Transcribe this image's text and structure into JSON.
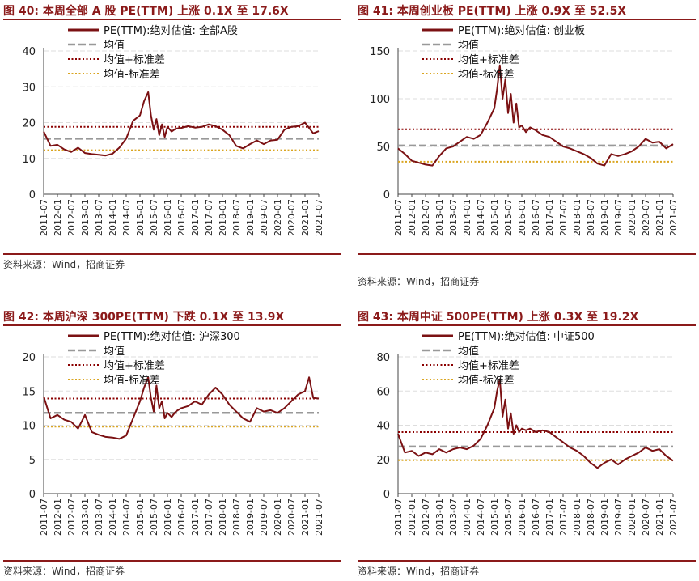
{
  "source_note": "资料来源：Wind，招商证券",
  "x_ticks": [
    "2011-07",
    "2012-01",
    "2012-07",
    "2013-01",
    "2013-07",
    "2014-01",
    "2014-07",
    "2015-01",
    "2015-07",
    "2016-01",
    "2016-07",
    "2017-01",
    "2017-07",
    "2018-01",
    "2018-07",
    "2019-01",
    "2019-07",
    "2020-01",
    "2020-07",
    "2021-01",
    "2021-07"
  ],
  "legend": {
    "mean": "均值",
    "plus": "均值+标准差",
    "minus": "均值-标准差"
  },
  "colors": {
    "series": "#7B1113",
    "mean": "#999999",
    "plus": "#8B0000",
    "minus": "#DAA520",
    "grid": "#DDDDDD",
    "title": "#8B1A1A"
  },
  "chart_data": [
    {
      "type": "line",
      "title": "图 40:  本周全部 A 股 PE(TTM) 上涨 0.1X 至 17.6X",
      "series_name": "PE(TTM):绝对估值: 全部A股",
      "ylim": [
        0,
        40
      ],
      "yticks": [
        0,
        10,
        20,
        30,
        40
      ],
      "mean": 15.5,
      "plus": 18.8,
      "minus": 12.3,
      "x": [
        0,
        0.5,
        1,
        1.5,
        2,
        2.5,
        3,
        3.5,
        4,
        4.5,
        5,
        5.5,
        6,
        6.5,
        7,
        7.3,
        7.6,
        7.8,
        8,
        8.2,
        8.4,
        8.6,
        8.8,
        9,
        9.3,
        9.6,
        10,
        10.5,
        11,
        11.5,
        12,
        12.5,
        13,
        13.5,
        14,
        14.5,
        15,
        15.5,
        16,
        16.5,
        17,
        17.5,
        18,
        18.5,
        19,
        19.3,
        19.6,
        20
      ],
      "values": [
        17.5,
        13.5,
        13.8,
        12.5,
        11.8,
        13.0,
        11.5,
        11.2,
        11.0,
        10.8,
        11.3,
        13.0,
        15.5,
        20.5,
        22.0,
        26.0,
        28.5,
        22.0,
        18.0,
        21.0,
        16.5,
        19.5,
        16.0,
        18.8,
        17.5,
        18.3,
        18.5,
        19.0,
        18.6,
        18.8,
        19.5,
        19.0,
        18.0,
        16.5,
        13.5,
        12.8,
        14.0,
        15.0,
        14.0,
        15.0,
        15.2,
        18.0,
        18.8,
        19.0,
        20.0,
        18.5,
        17.0,
        17.6
      ]
    },
    {
      "type": "line",
      "title": "图 41:  本周创业板 PE(TTM) 上涨 0.9X 至 52.5X",
      "series_name": "PE(TTM):绝对估值: 创业板",
      "ylim": [
        0,
        150
      ],
      "yticks": [
        0,
        50,
        100,
        150
      ],
      "mean": 51,
      "plus": 68,
      "minus": 34,
      "x": [
        0,
        0.5,
        1,
        1.5,
        2,
        2.5,
        3,
        3.5,
        4,
        4.5,
        5,
        5.5,
        6,
        6.5,
        7,
        7.2,
        7.4,
        7.6,
        7.8,
        8,
        8.2,
        8.4,
        8.6,
        8.8,
        9,
        9.3,
        9.6,
        10,
        10.5,
        11,
        11.5,
        12,
        12.5,
        13,
        13.5,
        14,
        14.5,
        15,
        15.5,
        16,
        16.5,
        17,
        17.5,
        18,
        18.5,
        19,
        19.5,
        20
      ],
      "values": [
        48,
        42,
        35,
        33,
        31,
        30,
        40,
        48,
        50,
        55,
        60,
        58,
        62,
        75,
        90,
        110,
        135,
        100,
        120,
        85,
        105,
        75,
        95,
        70,
        72,
        65,
        70,
        67,
        62,
        60,
        55,
        50,
        48,
        45,
        42,
        38,
        32,
        30,
        42,
        40,
        42,
        45,
        50,
        58,
        54,
        55,
        48,
        52.5
      ]
    },
    {
      "type": "line",
      "title": "图 42:  本周沪深 300PE(TTM) 下跌 0.1X 至 13.9X",
      "series_name": "PE(TTM):绝对估值: 沪深300",
      "ylim": [
        0,
        20
      ],
      "yticks": [
        0,
        5,
        10,
        15,
        20
      ],
      "mean": 11.8,
      "plus": 13.9,
      "minus": 9.8,
      "x": [
        0,
        0.5,
        1,
        1.5,
        2,
        2.5,
        3,
        3.5,
        4,
        4.5,
        5,
        5.5,
        6,
        6.5,
        7,
        7.3,
        7.6,
        7.8,
        8,
        8.2,
        8.4,
        8.6,
        8.8,
        9,
        9.3,
        9.6,
        10,
        10.5,
        11,
        11.5,
        12,
        12.5,
        13,
        13.5,
        14,
        14.5,
        15,
        15.5,
        16,
        16.5,
        17,
        17.5,
        18,
        18.5,
        19,
        19.3,
        19.6,
        20
      ],
      "values": [
        14.2,
        11.0,
        11.5,
        10.8,
        10.5,
        9.5,
        11.5,
        9.0,
        8.6,
        8.3,
        8.2,
        8.0,
        8.5,
        11.0,
        13.5,
        15.5,
        17.0,
        14.0,
        12.0,
        15.8,
        12.5,
        13.5,
        11.0,
        11.8,
        11.2,
        12.0,
        12.5,
        12.8,
        13.5,
        13.0,
        14.5,
        15.5,
        14.5,
        13.0,
        12.0,
        11.0,
        10.5,
        12.5,
        12.0,
        12.2,
        11.8,
        12.5,
        13.5,
        14.5,
        15.0,
        17.0,
        14.0,
        13.9
      ]
    },
    {
      "type": "line",
      "title": "图 43:  本周中证 500PE(TTM) 上涨 0.3X 至 19.2X",
      "series_name": "PE(TTM):绝对估值: 中证500",
      "ylim": [
        0,
        80
      ],
      "yticks": [
        0,
        20,
        40,
        60,
        80
      ],
      "mean": 27.5,
      "plus": 36,
      "minus": 19.5,
      "x": [
        0,
        0.5,
        1,
        1.5,
        2,
        2.5,
        3,
        3.5,
        4,
        4.5,
        5,
        5.5,
        6,
        6.5,
        7,
        7.2,
        7.4,
        7.6,
        7.8,
        8,
        8.2,
        8.4,
        8.6,
        8.8,
        9,
        9.3,
        9.6,
        10,
        10.5,
        11,
        11.5,
        12,
        12.5,
        13,
        13.5,
        14,
        14.5,
        15,
        15.5,
        16,
        16.5,
        17,
        17.5,
        18,
        18.5,
        19,
        19.5,
        20
      ],
      "values": [
        35,
        24,
        25,
        22,
        24,
        23,
        26,
        24,
        26,
        27,
        26,
        28,
        32,
        40,
        50,
        60,
        67,
        45,
        55,
        38,
        47,
        35,
        40,
        36,
        38,
        37,
        38,
        36,
        37,
        36,
        33,
        30,
        27,
        25,
        22,
        18,
        15,
        18,
        20,
        17,
        20,
        22,
        24,
        27,
        25,
        26,
        22,
        19.2
      ]
    }
  ]
}
